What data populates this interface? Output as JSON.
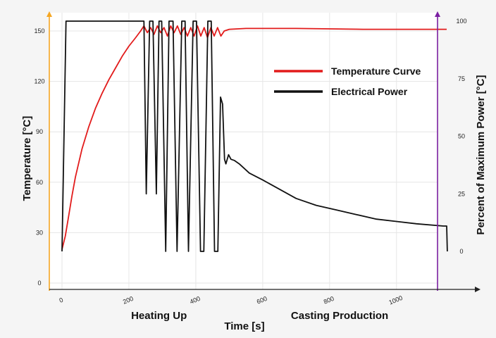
{
  "chart_data": {
    "type": "line",
    "title": "",
    "xlabel": "Time [s]",
    "ylabel_left": "Temperature [°C]",
    "ylabel_right": "Percent of Maximum Power [°C]",
    "xlim": [
      0,
      1150
    ],
    "ylim_left": [
      0,
      160
    ],
    "ylim_right": [
      -12,
      100
    ],
    "x_ticks": [
      0,
      200,
      400,
      600,
      800,
      1000
    ],
    "y_left_ticks": [
      0,
      30,
      60,
      90,
      120,
      150
    ],
    "y_right_ticks": [
      0,
      25,
      50,
      75,
      100
    ],
    "phase_labels": [
      {
        "text": "Heating Up",
        "x": 290
      },
      {
        "text": "Casting Production",
        "x": 830
      }
    ],
    "grid": true,
    "legend_position": "top-right",
    "left_axis_color": "#f5a623",
    "right_axis_color": "#7b1fa2",
    "series": [
      {
        "name": "Temperature Curve",
        "axis": "left",
        "color": "#e21b1b",
        "points": [
          [
            0,
            20
          ],
          [
            10,
            28
          ],
          [
            20,
            40
          ],
          [
            30,
            52
          ],
          [
            40,
            63
          ],
          [
            60,
            80
          ],
          [
            80,
            93
          ],
          [
            100,
            104
          ],
          [
            120,
            113
          ],
          [
            140,
            121
          ],
          [
            160,
            128
          ],
          [
            180,
            135
          ],
          [
            200,
            141
          ],
          [
            220,
            146
          ],
          [
            235,
            150
          ],
          [
            245,
            153
          ],
          [
            255,
            149
          ],
          [
            265,
            152
          ],
          [
            275,
            148
          ],
          [
            285,
            153
          ],
          [
            295,
            149
          ],
          [
            305,
            152
          ],
          [
            315,
            147
          ],
          [
            325,
            153
          ],
          [
            335,
            149
          ],
          [
            345,
            153
          ],
          [
            355,
            148
          ],
          [
            365,
            152
          ],
          [
            375,
            147
          ],
          [
            385,
            152
          ],
          [
            395,
            147
          ],
          [
            405,
            153
          ],
          [
            415,
            147
          ],
          [
            425,
            152
          ],
          [
            435,
            146
          ],
          [
            445,
            152
          ],
          [
            455,
            147
          ],
          [
            465,
            152
          ],
          [
            475,
            147
          ],
          [
            485,
            150
          ],
          [
            500,
            151
          ],
          [
            550,
            151.5
          ],
          [
            700,
            151.5
          ],
          [
            900,
            151
          ],
          [
            1150,
            151
          ]
        ]
      },
      {
        "name": "Electrical Power",
        "axis": "right",
        "color": "#111111",
        "points": [
          [
            0,
            0
          ],
          [
            12,
            100
          ],
          [
            240,
            100
          ],
          [
            245,
            100
          ],
          [
            252,
            25
          ],
          [
            262,
            100
          ],
          [
            272,
            100
          ],
          [
            282,
            25
          ],
          [
            290,
            100
          ],
          [
            298,
            100
          ],
          [
            310,
            0
          ],
          [
            320,
            100
          ],
          [
            332,
            100
          ],
          [
            344,
            0
          ],
          [
            358,
            100
          ],
          [
            368,
            100
          ],
          [
            378,
            0
          ],
          [
            392,
            100
          ],
          [
            402,
            100
          ],
          [
            414,
            0
          ],
          [
            424,
            0
          ],
          [
            436,
            100
          ],
          [
            446,
            100
          ],
          [
            456,
            0
          ],
          [
            466,
            0
          ],
          [
            474,
            67
          ],
          [
            480,
            64
          ],
          [
            486,
            40
          ],
          [
            490,
            38
          ],
          [
            498,
            42
          ],
          [
            505,
            40
          ],
          [
            515,
            39.5
          ],
          [
            530,
            38
          ],
          [
            560,
            34
          ],
          [
            600,
            31
          ],
          [
            650,
            27
          ],
          [
            700,
            23
          ],
          [
            760,
            20
          ],
          [
            820,
            18
          ],
          [
            880,
            16
          ],
          [
            940,
            14
          ],
          [
            1000,
            13
          ],
          [
            1060,
            12
          ],
          [
            1140,
            11
          ],
          [
            1150,
            11
          ],
          [
            1152,
            0
          ]
        ]
      }
    ]
  }
}
